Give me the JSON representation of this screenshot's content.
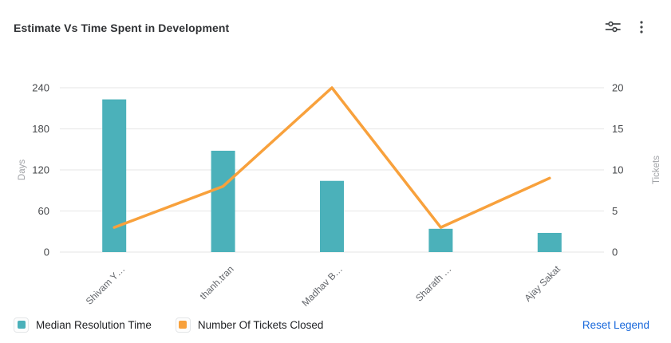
{
  "header": {
    "title": "Estimate Vs Time Spent in Development",
    "customize_icon": "sliders-icon",
    "more_icon": "kebab-menu-icon"
  },
  "colors": {
    "bar_teal": "#4bb1ba",
    "line_orange": "#f8a13c",
    "gridline": "#ebebeb",
    "tick_text": "#46484b",
    "axis_title_text": "#a0a2a6",
    "x_label_text": "#63666b",
    "reset_link": "#1868db",
    "icon_gray": "#44474a"
  },
  "chart_data": {
    "type": "combo",
    "categories": [
      "Shivam Y…",
      "thanh.tran",
      "Madhav B…",
      "Sharath …",
      "Ajay Sakat"
    ],
    "series": [
      {
        "name": "Median Resolution Time",
        "type": "bar",
        "axis": "left",
        "color": "#4bb1ba",
        "values": [
          223,
          148,
          104,
          34,
          28
        ]
      },
      {
        "name": "Number Of Tickets Closed",
        "type": "line",
        "axis": "right",
        "color": "#f8a13c",
        "values": [
          3,
          8,
          20,
          3,
          9
        ]
      }
    ],
    "title": "Estimate Vs Time Spent in Development",
    "left_axis": {
      "label": "Days",
      "min": 0,
      "max": 240,
      "ticks": [
        0,
        60,
        120,
        180,
        240
      ]
    },
    "right_axis": {
      "label": "Tickets",
      "min": 0,
      "max": 20,
      "ticks": [
        0,
        5,
        10,
        15,
        20
      ]
    },
    "grid": true,
    "legend_position": "bottom-left"
  },
  "legend": {
    "items": [
      {
        "label": "Median Resolution Time",
        "color": "#4bb1ba"
      },
      {
        "label": "Number Of Tickets Closed",
        "color": "#f8a13c"
      }
    ],
    "reset_label": "Reset Legend"
  }
}
